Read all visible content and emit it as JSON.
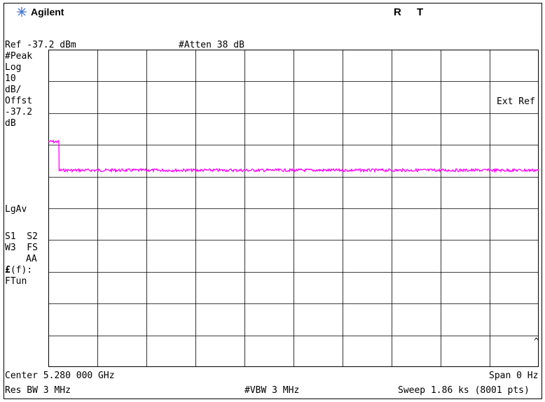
{
  "header": {
    "brand": "Agilent",
    "indicator_r": "R",
    "indicator_t": "T",
    "ref_level": "Ref -37.2 dBm",
    "atten": "#Atten 38 dB"
  },
  "left_panel": {
    "detector": "#Peak",
    "scale_type": "Log",
    "scale_value": "10",
    "scale_unit": "dB/",
    "offset_label": "Offst",
    "offset_value": "-37.2",
    "offset_unit": "dB",
    "avg_mode": "LgAv",
    "s1s2": "S1  S2",
    "w3fs": "W3  FS",
    "aa": "AA",
    "func_symbol": "£",
    "func_suffix": "(f):",
    "ftun": "FTun"
  },
  "right_annotation": "Ext Ref",
  "footer": {
    "center": "Center 5.280 000 GHz",
    "span": "Span 0 Hz",
    "res_bw": "Res BW 3 MHz",
    "vbw": "#VBW 3 MHz",
    "sweep": "Sweep 1.86 ks (8001 pts)"
  },
  "colors": {
    "trace": "#ff00ff",
    "grid": "#000000",
    "logo": "#4a7bd4"
  },
  "chart_data": {
    "type": "line",
    "grid_divisions": [
      10,
      10
    ],
    "series": [
      {
        "description": "time-domain power trace",
        "points_div": [
          [
            0,
            2.9
          ],
          [
            0.22,
            2.9
          ],
          [
            0.22,
            3.8
          ],
          [
            10,
            3.8
          ]
        ]
      }
    ]
  }
}
